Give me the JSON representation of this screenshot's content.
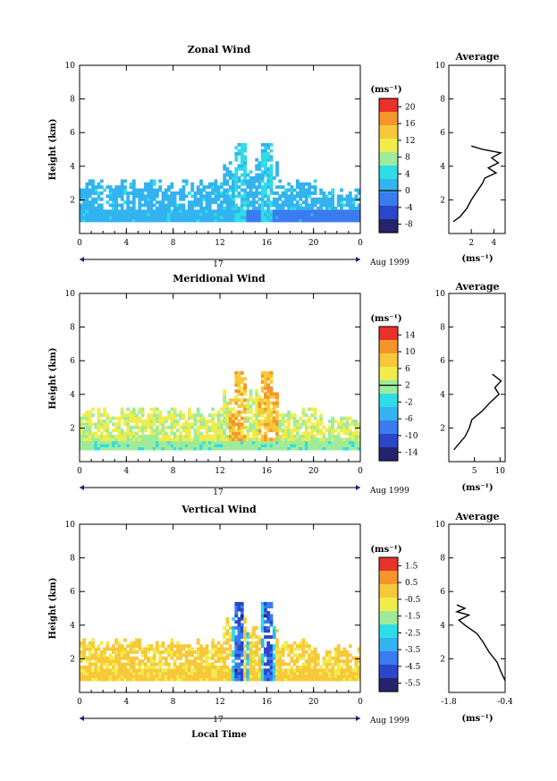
{
  "x_axis_label": "Local Time",
  "date_label": "Aug 1999",
  "day_label": "17",
  "avg_title": "Average",
  "ylabel": "Height (km)",
  "colorbar_unit": "(ms⁻¹)",
  "avg_unit": "(ms⁻¹)",
  "colors": {
    "scale": [
      "#23246b",
      "#2a46c9",
      "#3a7cf0",
      "#33b3ef",
      "#2fdde6",
      "#9eec9b",
      "#f0ec4a",
      "#f7c93a",
      "#f5952c",
      "#e8312a"
    ]
  },
  "chart_data": [
    {
      "type": "heatmap",
      "title": "Zonal Wind",
      "xlim": [
        0,
        24
      ],
      "ylim": [
        0,
        10
      ],
      "xticks": [
        "0",
        "4",
        "8",
        "12",
        "16",
        "20",
        "0"
      ],
      "yticks": [
        "2",
        "4",
        "6",
        "8",
        "10"
      ],
      "colorbar": {
        "ticks": [
          "20",
          "16",
          "12",
          "8",
          "4",
          "0",
          "-4",
          "-8"
        ],
        "range": [
          -10,
          22
        ],
        "contour_level": 0
      },
      "profile": {
        "xlim": [
          0,
          5
        ],
        "xticks": [
          "2",
          "4"
        ],
        "yticks": [
          "2",
          "4",
          "6",
          "8",
          "10"
        ],
        "height": [
          0.7,
          1.0,
          1.5,
          2.0,
          2.5,
          3.0,
          3.3,
          3.6,
          3.9,
          4.2,
          4.5,
          4.8,
          5.0,
          5.2
        ],
        "value": [
          0.4,
          1.0,
          1.6,
          2.0,
          2.5,
          3.0,
          3.2,
          4.2,
          3.5,
          4.4,
          3.8,
          4.6,
          3.0,
          2.0
        ]
      }
    },
    {
      "type": "heatmap",
      "title": "Meridional Wind",
      "xlim": [
        0,
        24
      ],
      "ylim": [
        0,
        10
      ],
      "xticks": [
        "0",
        "4",
        "8",
        "12",
        "16",
        "20",
        "0"
      ],
      "yticks": [
        "2",
        "4",
        "6",
        "8",
        "10"
      ],
      "colorbar": {
        "ticks": [
          "14",
          "10",
          "6",
          "2",
          "-2",
          "-6",
          "-10",
          "-14"
        ],
        "range": [
          -16,
          16
        ],
        "contour_level": 2
      },
      "profile": {
        "xlim": [
          0,
          11
        ],
        "xticks": [
          "5",
          "10"
        ],
        "yticks": [
          "2",
          "4",
          "6",
          "8",
          "10"
        ],
        "height": [
          0.7,
          1.0,
          1.5,
          2.0,
          2.5,
          3.0,
          3.5,
          4.0,
          4.4,
          4.8,
          5.2
        ],
        "value": [
          1.0,
          1.8,
          3.2,
          4.0,
          4.5,
          6.5,
          8.0,
          9.8,
          9.0,
          10.2,
          8.5
        ]
      }
    },
    {
      "type": "heatmap",
      "title": "Vertical Wind",
      "xlim": [
        0,
        24
      ],
      "ylim": [
        0,
        10
      ],
      "xticks": [
        "0",
        "4",
        "8",
        "12",
        "16",
        "20",
        "0"
      ],
      "yticks": [
        "2",
        "4",
        "6",
        "8",
        "10"
      ],
      "colorbar": {
        "ticks": [
          "1.5",
          "0.5",
          "-0.5",
          "-1.5",
          "-2.5",
          "-3.5",
          "-4.5",
          "-5.5"
        ],
        "range": [
          -6,
          2
        ],
        "contour_level": null
      },
      "profile": {
        "xlim": [
          -1.8,
          -0.4
        ],
        "xticks": [
          "-1.8",
          "-0.4"
        ],
        "yticks": [
          "2",
          "4",
          "6",
          "8",
          "10"
        ],
        "height": [
          0.7,
          1.2,
          1.8,
          2.4,
          3.0,
          3.5,
          4.0,
          4.3,
          4.6,
          4.8,
          5.0,
          5.2
        ],
        "value": [
          -0.4,
          -0.5,
          -0.6,
          -0.8,
          -0.95,
          -1.1,
          -1.4,
          -1.55,
          -1.3,
          -1.6,
          -1.4,
          -1.6
        ]
      }
    }
  ]
}
